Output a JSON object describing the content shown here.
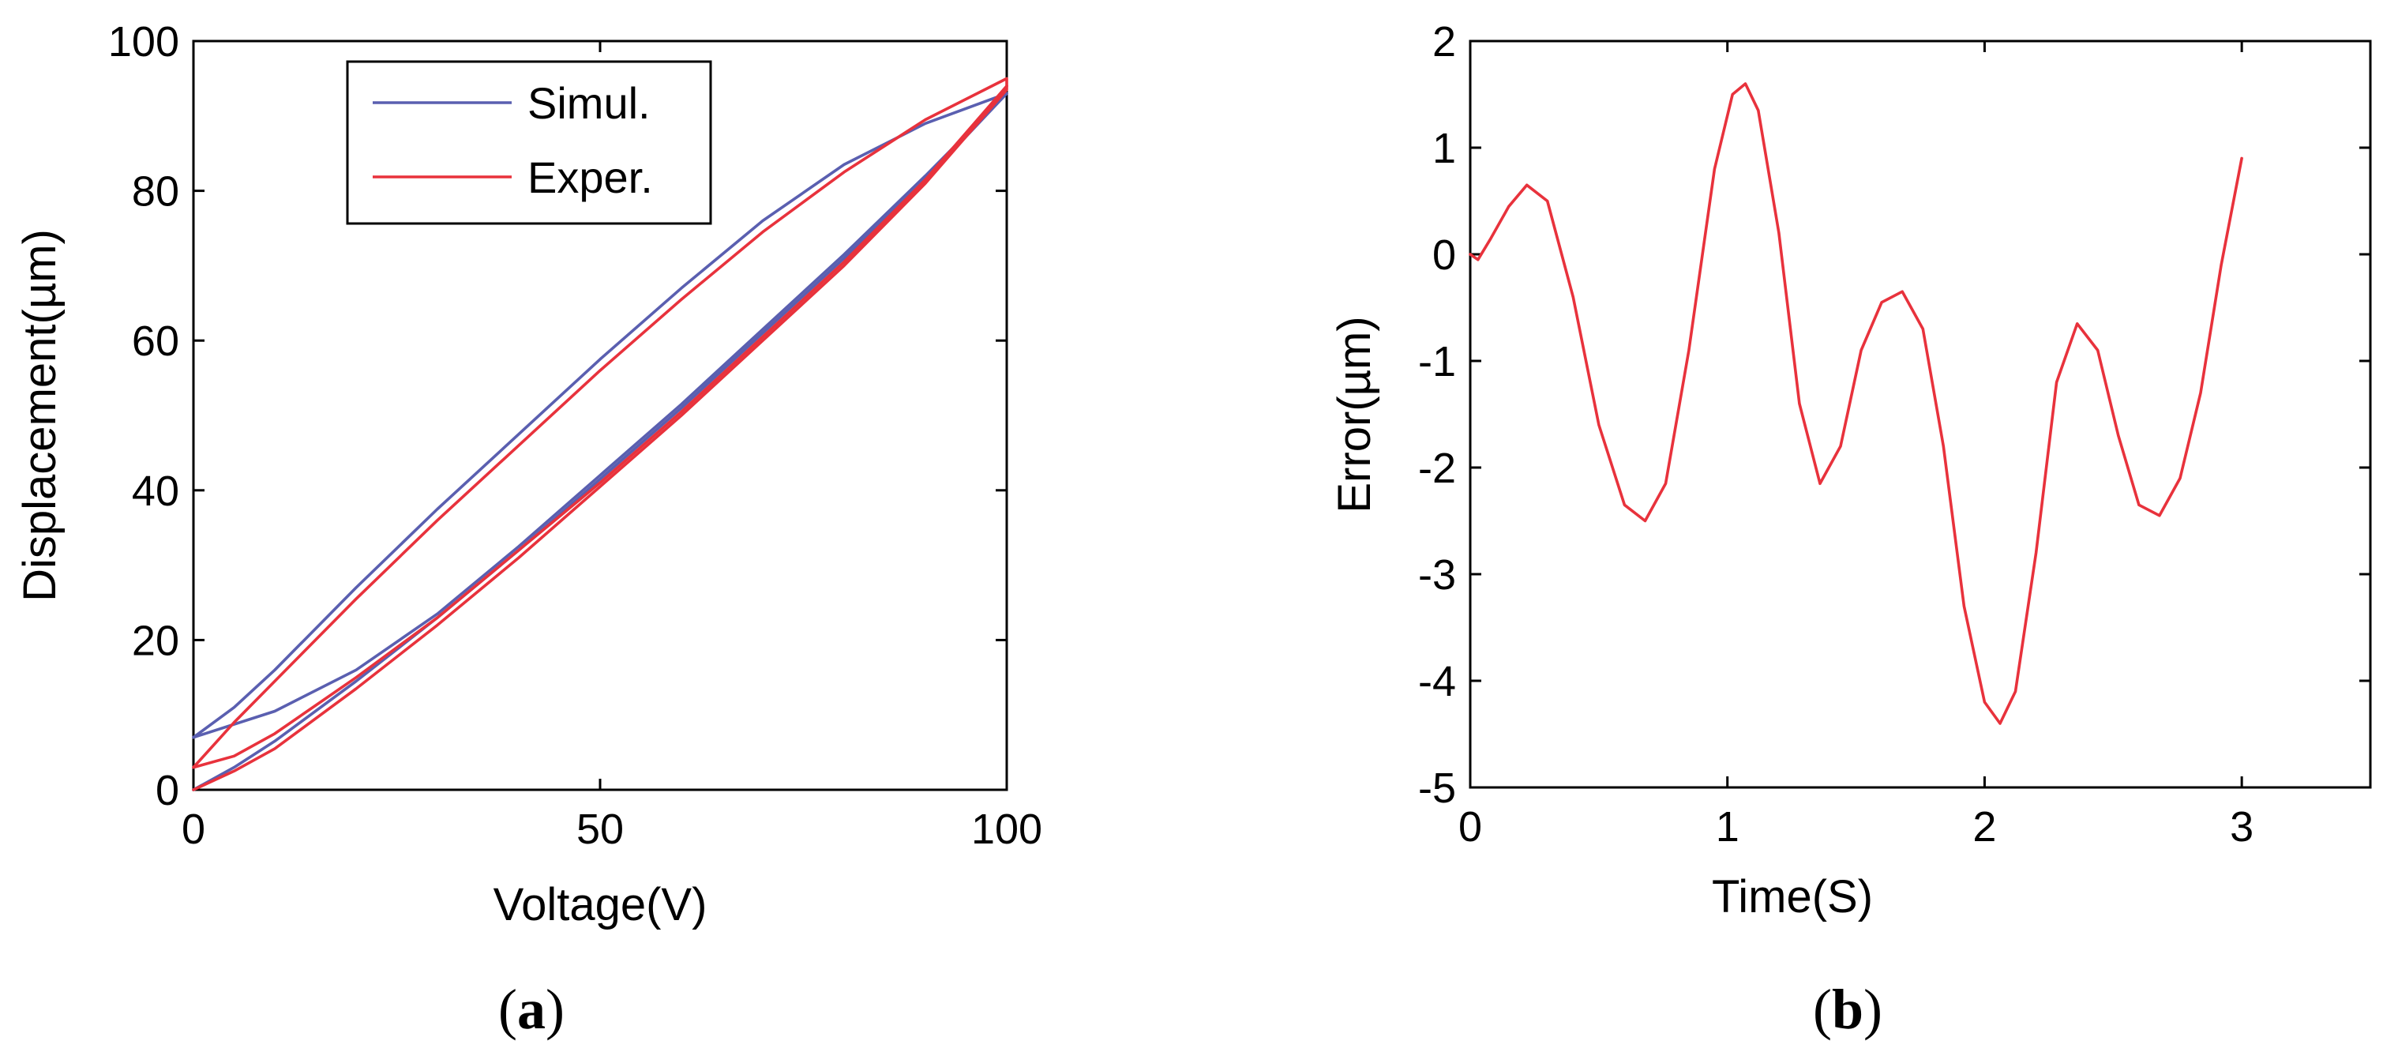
{
  "chart_data": [
    {
      "type": "line",
      "panel_label": "a",
      "xlabel": "Voltage(V)",
      "ylabel": "Displacement(µm)",
      "xlim": [
        0,
        100
      ],
      "ylim": [
        0,
        100
      ],
      "xticks": [
        0,
        50,
        100
      ],
      "yticks": [
        0,
        20,
        40,
        60,
        80,
        100
      ],
      "grid": false,
      "legend": {
        "position": "top-center",
        "entries": [
          "Simul.",
          "Exper."
        ]
      },
      "series": [
        {
          "name": "Simul.",
          "color": "#5a5fb0",
          "loops": [
            {
              "ascending_x": [
                0,
                5,
                10,
                20,
                30,
                40,
                50,
                60,
                70,
                80,
                90,
                100
              ],
              "ascending_y": [
                0,
                3,
                6.5,
                14.5,
                23,
                32,
                41.5,
                51,
                61,
                71,
                81.5,
                93
              ],
              "descending_x": [
                100,
                90,
                80,
                70,
                60,
                50,
                40,
                30,
                20,
                10,
                5,
                0
              ],
              "descending_y": [
                93,
                89,
                83.5,
                76,
                67,
                57.5,
                47.5,
                37.5,
                27,
                16,
                11,
                7
              ]
            },
            {
              "ascending_x": [
                0,
                10,
                20,
                30,
                40,
                50,
                60,
                70,
                80,
                90,
                100
              ],
              "ascending_y": [
                7,
                10.5,
                16,
                23.5,
                32.5,
                42,
                51.5,
                61.5,
                71.5,
                82,
                93
              ],
              "descending_x": [],
              "descending_y": []
            }
          ]
        },
        {
          "name": "Exper.",
          "color": "#e8323c",
          "loops": [
            {
              "ascending_x": [
                0,
                5,
                10,
                20,
                30,
                40,
                50,
                60,
                70,
                80,
                90,
                100
              ],
              "ascending_y": [
                0,
                2.5,
                5.5,
                13.5,
                22,
                31,
                40.5,
                50,
                60,
                70,
                81,
                93.5
              ],
              "descending_x": [
                100,
                90,
                80,
                70,
                60,
                50,
                40,
                30,
                20,
                10,
                5,
                0
              ],
              "descending_y": [
                95,
                89.5,
                82.5,
                74.5,
                65.5,
                56,
                46,
                36,
                25.5,
                14.5,
                9,
                3
              ]
            },
            {
              "ascending_x": [
                0,
                5,
                10,
                20,
                30,
                40,
                50,
                60,
                70,
                80,
                90,
                100
              ],
              "ascending_y": [
                3,
                4.5,
                7.5,
                15,
                23,
                32,
                41,
                50.5,
                60.5,
                70.5,
                81.5,
                94
              ],
              "descending_x": [],
              "descending_y": []
            }
          ]
        }
      ]
    },
    {
      "type": "line",
      "panel_label": "b",
      "xlabel": "Time(S)",
      "ylabel": "Error(µm)",
      "xlim": [
        0,
        3.5
      ],
      "ylim": [
        -5,
        2
      ],
      "xticks": [
        0,
        1,
        2,
        3
      ],
      "yticks": [
        2,
        1,
        0,
        -1,
        -2,
        -3,
        -4,
        -5
      ],
      "grid": false,
      "series": [
        {
          "color": "#e8323c",
          "x": [
            0,
            0.03,
            0.08,
            0.15,
            0.22,
            0.3,
            0.4,
            0.5,
            0.6,
            0.68,
            0.76,
            0.85,
            0.95,
            1.02,
            1.07,
            1.12,
            1.2,
            1.28,
            1.36,
            1.44,
            1.52,
            1.6,
            1.68,
            1.76,
            1.84,
            1.92,
            2.0,
            2.06,
            2.12,
            2.2,
            2.28,
            2.36,
            2.44,
            2.52,
            2.6,
            2.68,
            2.76,
            2.84,
            2.92,
            3.0
          ],
          "y": [
            0,
            -0.05,
            0.15,
            0.45,
            0.65,
            0.5,
            -0.4,
            -1.6,
            -2.35,
            -2.5,
            -2.15,
            -0.9,
            0.8,
            1.5,
            1.6,
            1.35,
            0.2,
            -1.4,
            -2.15,
            -1.8,
            -0.9,
            -0.45,
            -0.35,
            -0.7,
            -1.8,
            -3.3,
            -4.2,
            -4.4,
            -4.1,
            -2.8,
            -1.2,
            -0.65,
            -0.9,
            -1.7,
            -2.35,
            -2.45,
            -2.1,
            -1.3,
            -0.1,
            0.9
          ]
        }
      ]
    }
  ]
}
